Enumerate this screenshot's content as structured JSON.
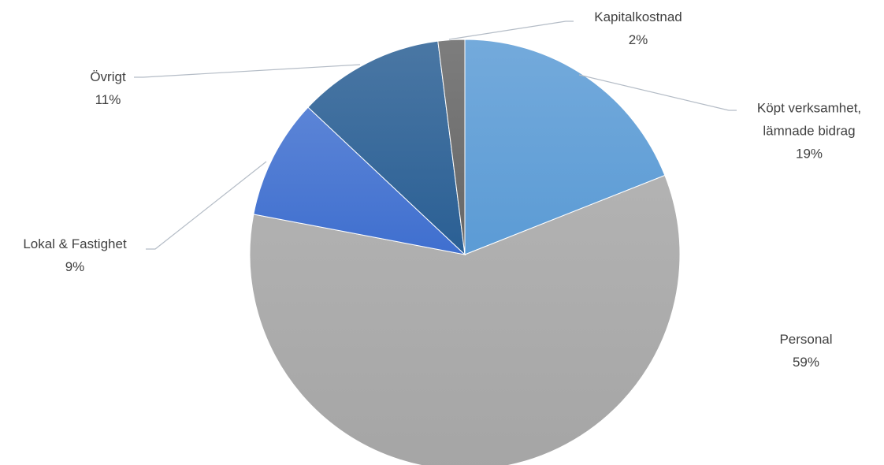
{
  "chart_data": {
    "type": "pie",
    "categories": [
      "Köpt verksamhet, lämnade bidrag",
      "Personal",
      "Lokal & Fastighet",
      "Övrigt",
      "Kapitalkostnad"
    ],
    "values": [
      19,
      59,
      9,
      11,
      2
    ],
    "value_labels": [
      "19%",
      "59%",
      "9%",
      "11%",
      "2%"
    ],
    "colors": [
      "#5b9bd5",
      "#a5a5a5",
      "#3f6fcf",
      "#2a5f94",
      "#666666"
    ]
  }
}
